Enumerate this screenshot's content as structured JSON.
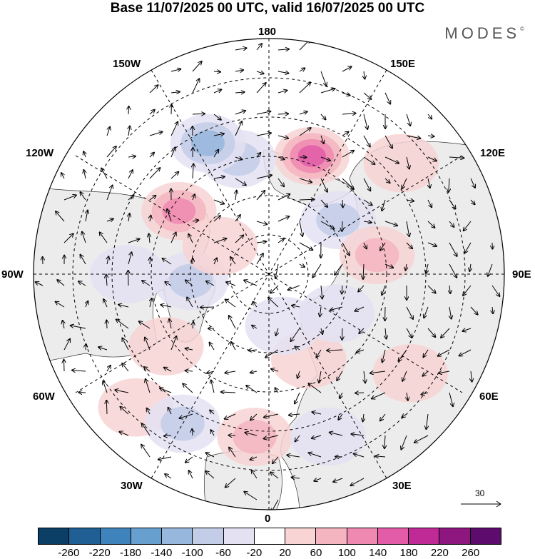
{
  "title": "Base 11/07/2025 00 UTC, valid 16/07/2025 00 UTC",
  "brand": "MODES",
  "brand_mark": "©",
  "longitude_labels": {
    "top": "180",
    "bottom": "0",
    "left": "90W",
    "right": "90E",
    "upper_left_outer": "150W",
    "upper_left_inner": "120W",
    "upper_right_outer": "150E",
    "upper_right_inner": "120E",
    "lower_left_outer": "60W",
    "lower_left_inner": "30W",
    "lower_right_outer": "60E",
    "lower_right_inner": "30E"
  },
  "reference_vector": "30",
  "colorbar": {
    "colors": [
      "#0c3f66",
      "#1f5f93",
      "#3f83bd",
      "#679fcf",
      "#97b7dd",
      "#c3cde8",
      "#e4e2f2",
      "#ffffff",
      "#f8d4d4",
      "#f4b5c0",
      "#ef89b2",
      "#e25ca8",
      "#bf2a96",
      "#8e167f",
      "#5e0b6e"
    ],
    "ticks": [
      "-260",
      "-220",
      "-180",
      "-140",
      "-100",
      "-60",
      "-20",
      "20",
      "60",
      "100",
      "140",
      "180",
      "220",
      "260"
    ]
  },
  "anomalies": [
    {
      "lon": -125,
      "lat": 55,
      "value": 110
    },
    {
      "lon": 160,
      "lat": 50,
      "value": 150
    },
    {
      "lon": -165,
      "lat": 52,
      "value": -70
    },
    {
      "lon": -155,
      "lat": 44,
      "value": -120
    },
    {
      "lon": 128,
      "lat": 62,
      "value": -95
    },
    {
      "lon": 100,
      "lat": 55,
      "value": 80
    },
    {
      "lon": 130,
      "lat": 35,
      "value": 50
    },
    {
      "lon": -85,
      "lat": 65,
      "value": -70
    },
    {
      "lon": -90,
      "lat": 45,
      "value": -35
    },
    {
      "lon": -55,
      "lat": 50,
      "value": 55
    },
    {
      "lon": -45,
      "lat": 30,
      "value": 35
    },
    {
      "lon": -30,
      "lat": 35,
      "value": -85
    },
    {
      "lon": -5,
      "lat": 38,
      "value": 65
    },
    {
      "lon": 20,
      "lat": 35,
      "value": -35
    },
    {
      "lon": 25,
      "lat": 60,
      "value": 50
    },
    {
      "lon": 60,
      "lat": 65,
      "value": -45
    },
    {
      "lon": 55,
      "lat": 35,
      "value": 40
    },
    {
      "lon": 15,
      "lat": 73,
      "value": -40
    },
    {
      "lon": -120,
      "lat": 72,
      "value": 35
    }
  ]
}
